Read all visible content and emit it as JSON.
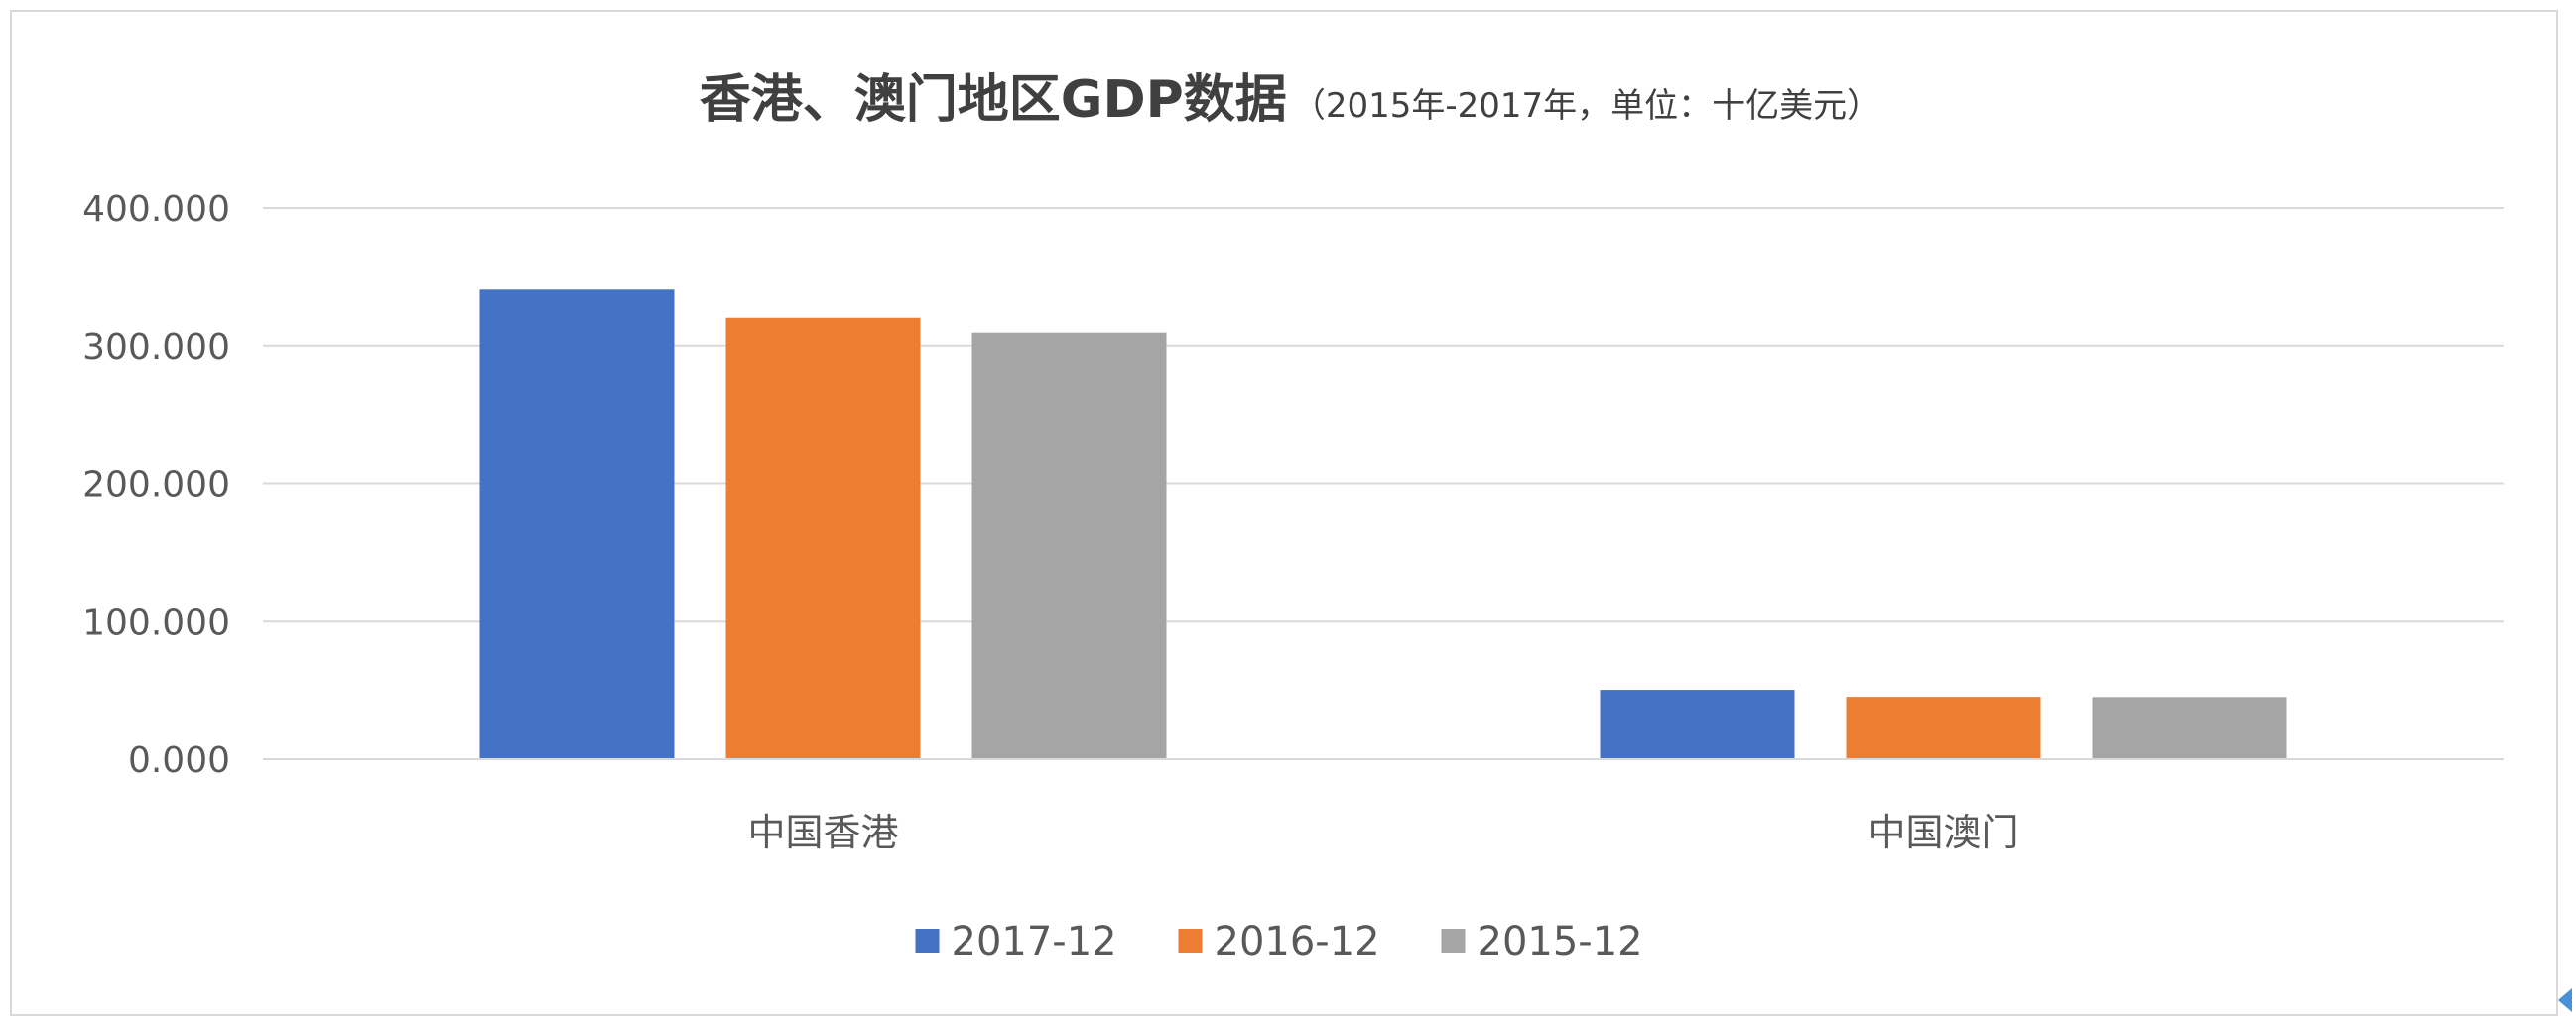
{
  "chart_data": {
    "type": "bar",
    "title": "香港、澳门地区GDP数据",
    "subtitle": "（2015年-2017年，单位：十亿美元）",
    "categories": [
      "中国香港",
      "中国澳门"
    ],
    "series": [
      {
        "name": "2017-12",
        "values": [
          341.4,
          50.4
        ],
        "color": "#4472c4"
      },
      {
        "name": "2016-12",
        "values": [
          320.9,
          45.3
        ],
        "color": "#ed7d31"
      },
      {
        "name": "2015-12",
        "values": [
          309.4,
          45.2
        ],
        "color": "#a5a5a5"
      }
    ],
    "ylim": [
      0,
      400
    ],
    "yticks": [
      0,
      100,
      200,
      300,
      400
    ],
    "ytick_labels": [
      "0.000",
      "100.000",
      "200.000",
      "300.000",
      "400.000"
    ],
    "xlabel": "",
    "ylabel": "",
    "grid": true,
    "legend_position": "bottom"
  }
}
